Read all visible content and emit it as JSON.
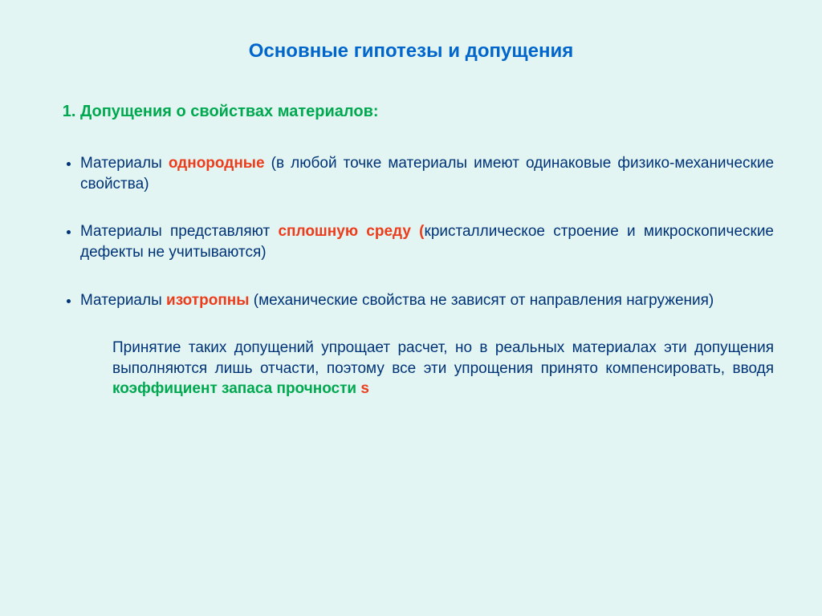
{
  "colors": {
    "background": "#e3f5f2",
    "title": "#0066cc",
    "body_text": "#003377",
    "highlight_green": "#00a84f",
    "highlight_red": "#ec3c1b"
  },
  "typography": {
    "title_fontsize": 24,
    "heading_fontsize": 20,
    "body_fontsize": 19,
    "font_family": "Arial"
  },
  "title": "Основные гипотезы и допущения",
  "section": {
    "number": "1.",
    "heading": "Допущения о свойствах материалов:"
  },
  "bullets": [
    {
      "pre": "Материалы ",
      "hl": "однородные",
      "post": " (в любой точке материалы имеют одинаковые физико-механические свойства)"
    },
    {
      "pre": "Материалы представляют ",
      "hl": "сплошную среду",
      "post_open": " (",
      "post": "кристаллическое строение и микроскопические дефекты не учитываются)"
    },
    {
      "pre": "Материалы ",
      "hl": "изотропны",
      "post": " (механические свойства не зависят от направления нагружения)"
    }
  ],
  "paragraph": {
    "pre": "Принятие таких допущений упрощает расчет, но в реальных материалах эти допущения выполняются лишь отчасти, поэтому все эти упрощения принято компенсировать, вводя ",
    "hl_green": "коэффициент запаса прочности ",
    "hl_red": "s"
  }
}
